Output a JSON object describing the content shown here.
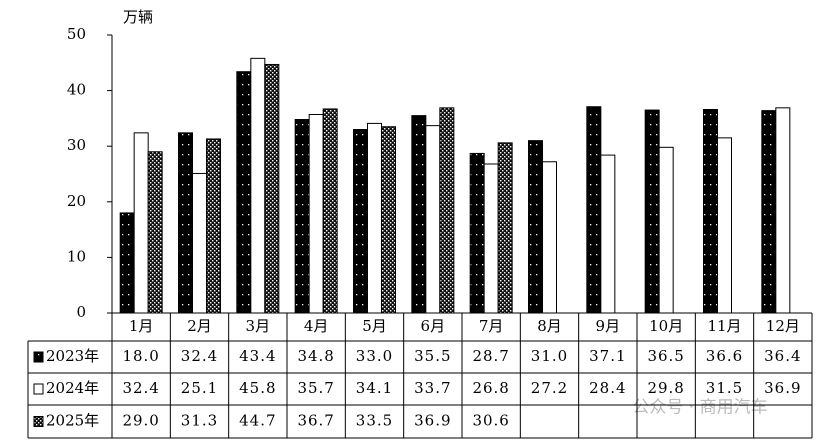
{
  "chart_data": {
    "type": "bar",
    "y_unit": "万辆",
    "categories": [
      "1月",
      "2月",
      "3月",
      "4月",
      "5月",
      "6月",
      "7月",
      "8月",
      "9月",
      "10月",
      "11月",
      "12月"
    ],
    "ylim": [
      0,
      50
    ],
    "yticks": [
      0,
      10,
      20,
      30,
      40,
      50
    ],
    "series": [
      {
        "name": "2023年",
        "color": "#000000",
        "values": [
          18.0,
          32.4,
          43.4,
          34.8,
          33.0,
          35.5,
          28.7,
          31.0,
          37.1,
          36.5,
          36.6,
          36.4
        ],
        "value_labels": [
          "18.0",
          "32.4",
          "43.4",
          "34.8",
          "33.0",
          "35.5",
          "28.7",
          "31.0",
          "37.1",
          "36.5",
          "36.6",
          "36.4"
        ]
      },
      {
        "name": "2024年",
        "color": "#ffffff",
        "values": [
          32.4,
          25.1,
          45.8,
          35.7,
          34.1,
          33.7,
          26.8,
          27.2,
          28.4,
          29.8,
          31.5,
          36.9
        ],
        "value_labels": [
          "32.4",
          "25.1",
          "45.8",
          "35.7",
          "34.1",
          "33.7",
          "26.8",
          "27.2",
          "28.4",
          "29.8",
          "31.5",
          "36.9"
        ]
      },
      {
        "name": "2025年",
        "color": "#111111",
        "values": [
          29.0,
          31.3,
          44.7,
          36.7,
          33.5,
          36.9,
          30.6,
          null,
          null,
          null,
          null,
          null
        ],
        "value_labels": [
          "29.0",
          "31.3",
          "44.7",
          "36.7",
          "33.5",
          "36.9",
          "30.6",
          null,
          null,
          null,
          null,
          null
        ]
      }
    ],
    "watermark": "公众号 · 商用汽车"
  }
}
